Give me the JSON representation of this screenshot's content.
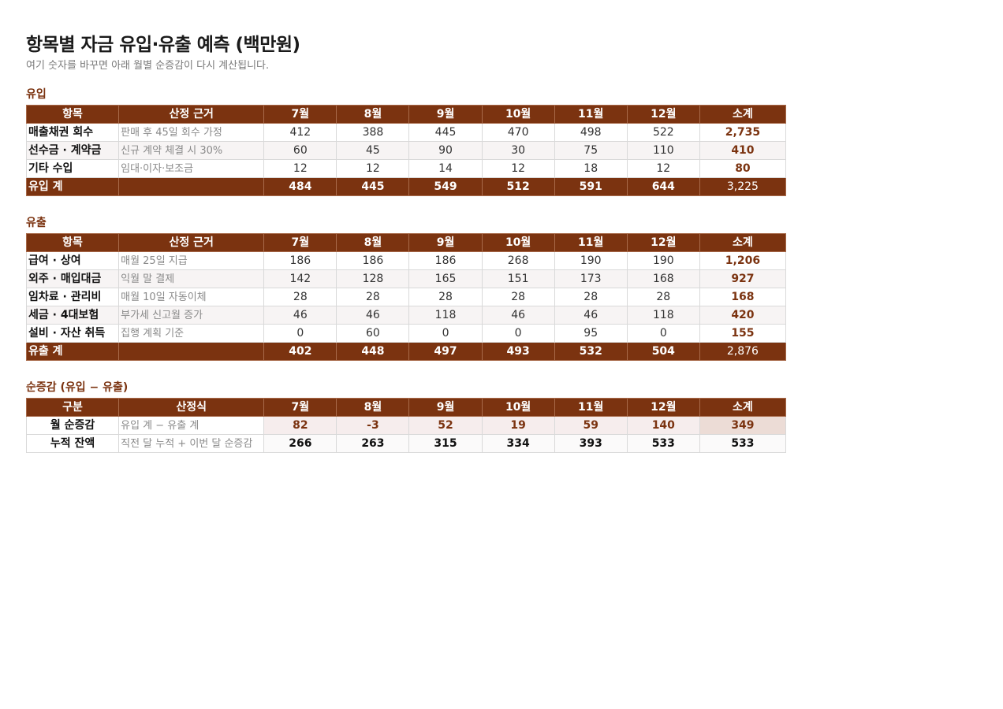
{
  "title": "항목별 자금 유입·유출 예측 (백만원)",
  "subtitle": "여기 숫자를 바꾸면 아래 월별 순증감이 다시 계산됩니다.",
  "inflow": {
    "label": "유입",
    "headers": [
      "항목",
      "산정 근거",
      "7월",
      "8월",
      "9월",
      "10월",
      "11월",
      "12월",
      "소계"
    ],
    "rows": [
      {
        "name": "매출채권 회수",
        "basis": "판매 후 45일 회수 가정",
        "values": [
          "412",
          "388",
          "445",
          "470",
          "498",
          "522"
        ],
        "sum": "2,735"
      },
      {
        "name": "선수금 · 계약금",
        "basis": "신규 계약 체결 시 30%",
        "values": [
          "60",
          "45",
          "90",
          "30",
          "75",
          "110"
        ],
        "sum": "410"
      },
      {
        "name": "기타 수입",
        "basis": "임대·이자·보조금",
        "values": [
          "12",
          "12",
          "14",
          "12",
          "18",
          "12"
        ],
        "sum": "80"
      }
    ],
    "total": {
      "name": "유입 계",
      "basis": "",
      "values": [
        "484",
        "445",
        "549",
        "512",
        "591",
        "644"
      ],
      "sum": "3,225"
    }
  },
  "outflow": {
    "label": "유출",
    "headers": [
      "항목",
      "산정 근거",
      "7월",
      "8월",
      "9월",
      "10월",
      "11월",
      "12월",
      "소계"
    ],
    "rows": [
      {
        "name": "급여 · 상여",
        "basis": "매월 25일 지급",
        "values": [
          "186",
          "186",
          "186",
          "268",
          "190",
          "190"
        ],
        "sum": "1,206"
      },
      {
        "name": "외주 · 매입대금",
        "basis": "익월 말 결제",
        "values": [
          "142",
          "128",
          "165",
          "151",
          "173",
          "168"
        ],
        "sum": "927"
      },
      {
        "name": "임차료 · 관리비",
        "basis": "매월 10일 자동이체",
        "values": [
          "28",
          "28",
          "28",
          "28",
          "28",
          "28"
        ],
        "sum": "168"
      },
      {
        "name": "세금 · 4대보험",
        "basis": "부가세 신고월 증가",
        "values": [
          "46",
          "46",
          "118",
          "46",
          "46",
          "118"
        ],
        "sum": "420"
      },
      {
        "name": "설비 · 자산 취득",
        "basis": "집행 계획 기준",
        "values": [
          "0",
          "60",
          "0",
          "0",
          "95",
          "0"
        ],
        "sum": "155"
      }
    ],
    "total": {
      "name": "유출 계",
      "basis": "",
      "values": [
        "402",
        "448",
        "497",
        "493",
        "532",
        "504"
      ],
      "sum": "2,876"
    }
  },
  "net": {
    "label": "순증감 (유입 − 유출)",
    "headers": [
      "구분",
      "산정식",
      "7월",
      "8월",
      "9월",
      "10월",
      "11월",
      "12월",
      "소계"
    ],
    "monthly": {
      "name": "월 순증감",
      "basis": "유입 계 − 유출 계",
      "values": [
        "82",
        "-3",
        "52",
        "19",
        "59",
        "140"
      ],
      "sum": "349"
    },
    "cumulative": {
      "name": "누적 잔액",
      "basis": "직전 달 누적 + 이번 달 순증감",
      "values": [
        "266",
        "263",
        "315",
        "334",
        "393",
        "533"
      ],
      "sum": "533"
    }
  },
  "colors": {
    "accent": "#7b3310",
    "header_text": "#ffffff",
    "muted": "#8a8a8a"
  }
}
